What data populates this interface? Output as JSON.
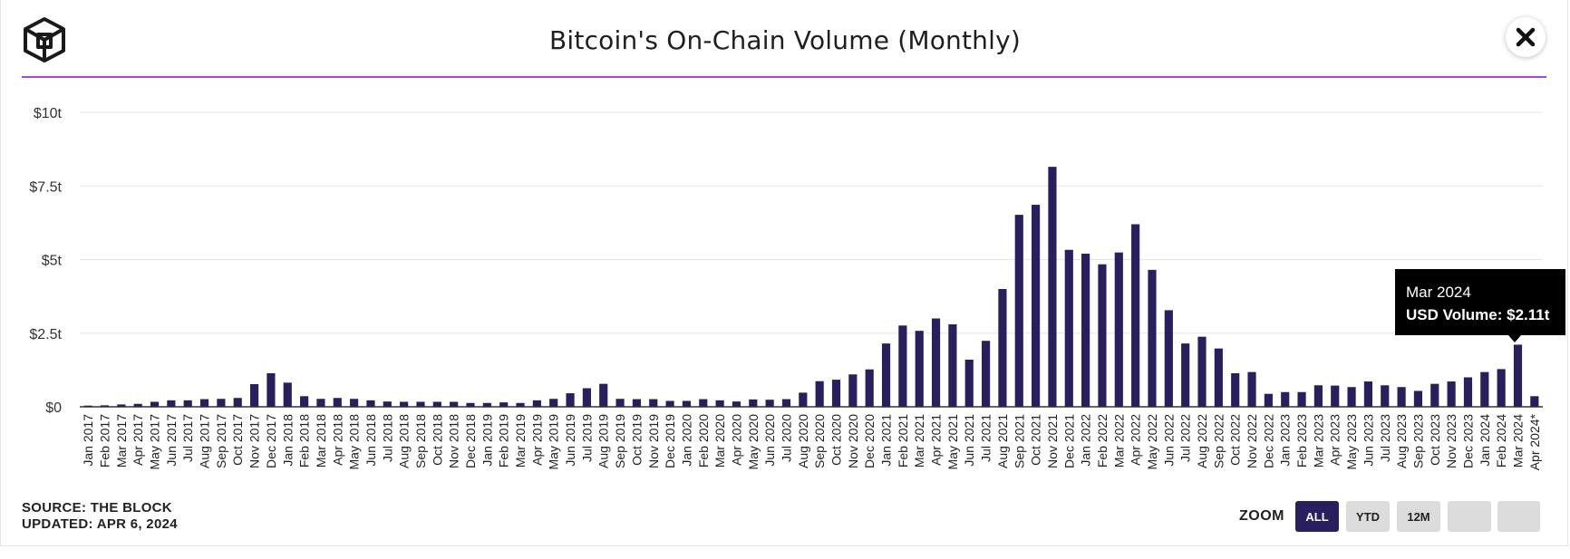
{
  "header": {
    "title": "Bitcoin's On-Chain Volume (Monthly)"
  },
  "icons": {
    "logo": "the-block-cube-logo",
    "close": "close-icon"
  },
  "colors": {
    "bar": "#2a1f5e",
    "accent_rule": "#a24bd6",
    "zoom_active": "#2a1f5e",
    "zoom_inactive": "#dcdcdc"
  },
  "tooltip": {
    "date": "Mar 2024",
    "value_text": "USD Volume: $2.11t"
  },
  "footer": {
    "source": "SOURCE: THE BLOCK",
    "updated": "UPDATED: APR 6, 2024"
  },
  "zoom": {
    "label": "ZOOM",
    "buttons": [
      {
        "label": "ALL",
        "active": true
      },
      {
        "label": "YTD",
        "active": false
      },
      {
        "label": "12M",
        "active": false
      },
      {
        "label": "",
        "active": false
      },
      {
        "label": "",
        "active": false
      }
    ]
  },
  "chart_data": {
    "type": "bar",
    "title": "Bitcoin's On-Chain Volume (Monthly)",
    "series_name": "USD Volume",
    "unit": "trillion USD",
    "ylim": [
      0,
      10
    ],
    "yticks": [
      0,
      2.5,
      5,
      7.5,
      10
    ],
    "ytick_labels": [
      "$0",
      "$2.5t",
      "$5t",
      "$7.5t",
      "$10t"
    ],
    "grid": true,
    "highlighted_category": "Mar 2024",
    "categories": [
      "Jan 2017",
      "Feb 2017",
      "Mar 2017",
      "Apr 2017",
      "May 2017",
      "Jun 2017",
      "Jul 2017",
      "Aug 2017",
      "Sep 2017",
      "Oct 2017",
      "Nov 2017",
      "Dec 2017",
      "Jan 2018",
      "Feb 2018",
      "Mar 2018",
      "Apr 2018",
      "May 2018",
      "Jun 2018",
      "Jul 2018",
      "Aug 2018",
      "Sep 2018",
      "Oct 2018",
      "Nov 2018",
      "Dec 2018",
      "Jan 2019",
      "Feb 2019",
      "Mar 2019",
      "Apr 2019",
      "May 2019",
      "Jun 2019",
      "Jul 2019",
      "Aug 2019",
      "Sep 2019",
      "Oct 2019",
      "Nov 2019",
      "Dec 2019",
      "Jan 2020",
      "Feb 2020",
      "Mar 2020",
      "Apr 2020",
      "May 2020",
      "Jun 2020",
      "Jul 2020",
      "Aug 2020",
      "Sep 2020",
      "Oct 2020",
      "Nov 2020",
      "Dec 2020",
      "Jan 2021",
      "Feb 2021",
      "Mar 2021",
      "Apr 2021",
      "May 2021",
      "Jun 2021",
      "Jul 2021",
      "Aug 2021",
      "Sep 2021",
      "Oct 2021",
      "Nov 2021",
      "Dec 2021",
      "Jan 2022",
      "Feb 2022",
      "Mar 2022",
      "Apr 2022",
      "May 2022",
      "Jun 2022",
      "Jul 2022",
      "Aug 2022",
      "Sep 2022",
      "Oct 2022",
      "Nov 2022",
      "Dec 2022",
      "Jan 2023",
      "Feb 2023",
      "Mar 2023",
      "Apr 2023",
      "May 2023",
      "Jun 2023",
      "Jul 2023",
      "Aug 2023",
      "Sep 2023",
      "Oct 2023",
      "Nov 2023",
      "Dec 2023",
      "Jan 2024",
      "Feb 2024",
      "Mar 2024",
      "Apr 2024*"
    ],
    "values": [
      0.04,
      0.05,
      0.08,
      0.1,
      0.17,
      0.22,
      0.22,
      0.26,
      0.27,
      0.3,
      0.77,
      1.14,
      0.82,
      0.36,
      0.27,
      0.3,
      0.27,
      0.22,
      0.18,
      0.17,
      0.17,
      0.17,
      0.17,
      0.13,
      0.13,
      0.15,
      0.13,
      0.22,
      0.27,
      0.46,
      0.63,
      0.78,
      0.27,
      0.26,
      0.26,
      0.2,
      0.2,
      0.26,
      0.22,
      0.18,
      0.25,
      0.24,
      0.26,
      0.48,
      0.87,
      0.92,
      1.1,
      1.27,
      2.15,
      2.76,
      2.58,
      3.0,
      2.8,
      1.6,
      2.24,
      4.0,
      6.52,
      6.86,
      8.15,
      5.33,
      5.2,
      4.84,
      5.24,
      6.2,
      4.65,
      3.28,
      2.15,
      2.38,
      1.98,
      1.14,
      1.18,
      0.44,
      0.5,
      0.5,
      0.73,
      0.72,
      0.67,
      0.86,
      0.73,
      0.67,
      0.54,
      0.78,
      0.86,
      1.0,
      1.18,
      1.28,
      2.11,
      0.36
    ]
  }
}
